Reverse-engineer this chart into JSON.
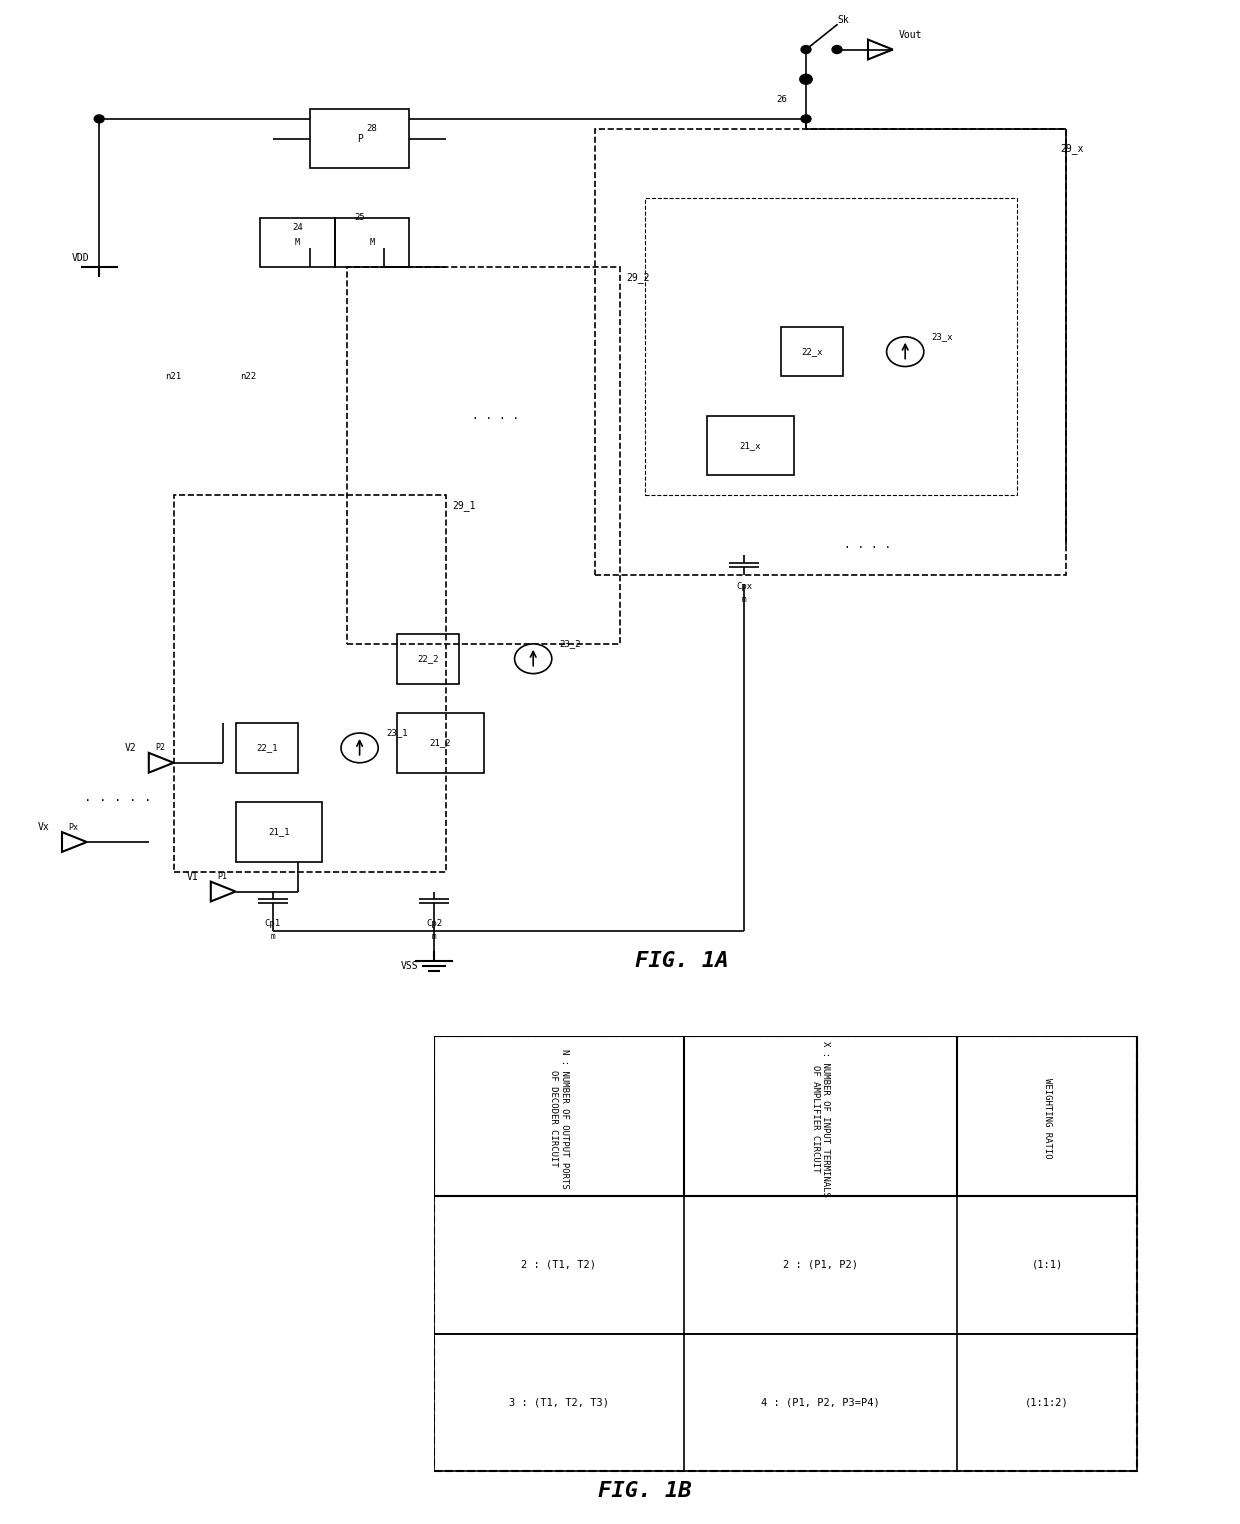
{
  "fig_title_A": "FIG. 1A",
  "fig_title_B": "FIG. 1B",
  "table_headers": [
    "N : NUMBER OF OUTPUT PORTS\nOF DECODER CIRCUIT",
    "X : NUMBER OF INPUT TERMINALS\nOF AMPLIFIER CIRCUIT",
    "WEIGHTING RATIO"
  ],
  "table_row1": [
    "2 : (T1, T2)",
    "2 : (P1, P2)",
    "(1:1)"
  ],
  "table_row2": [
    "3 : (T1, T2, T3)",
    "4 : (P1, P2, P3=P4)",
    "(1:1:2)"
  ],
  "bg_color": "#ffffff",
  "line_color": "#000000",
  "circuit_bg": "#f0f0f0"
}
